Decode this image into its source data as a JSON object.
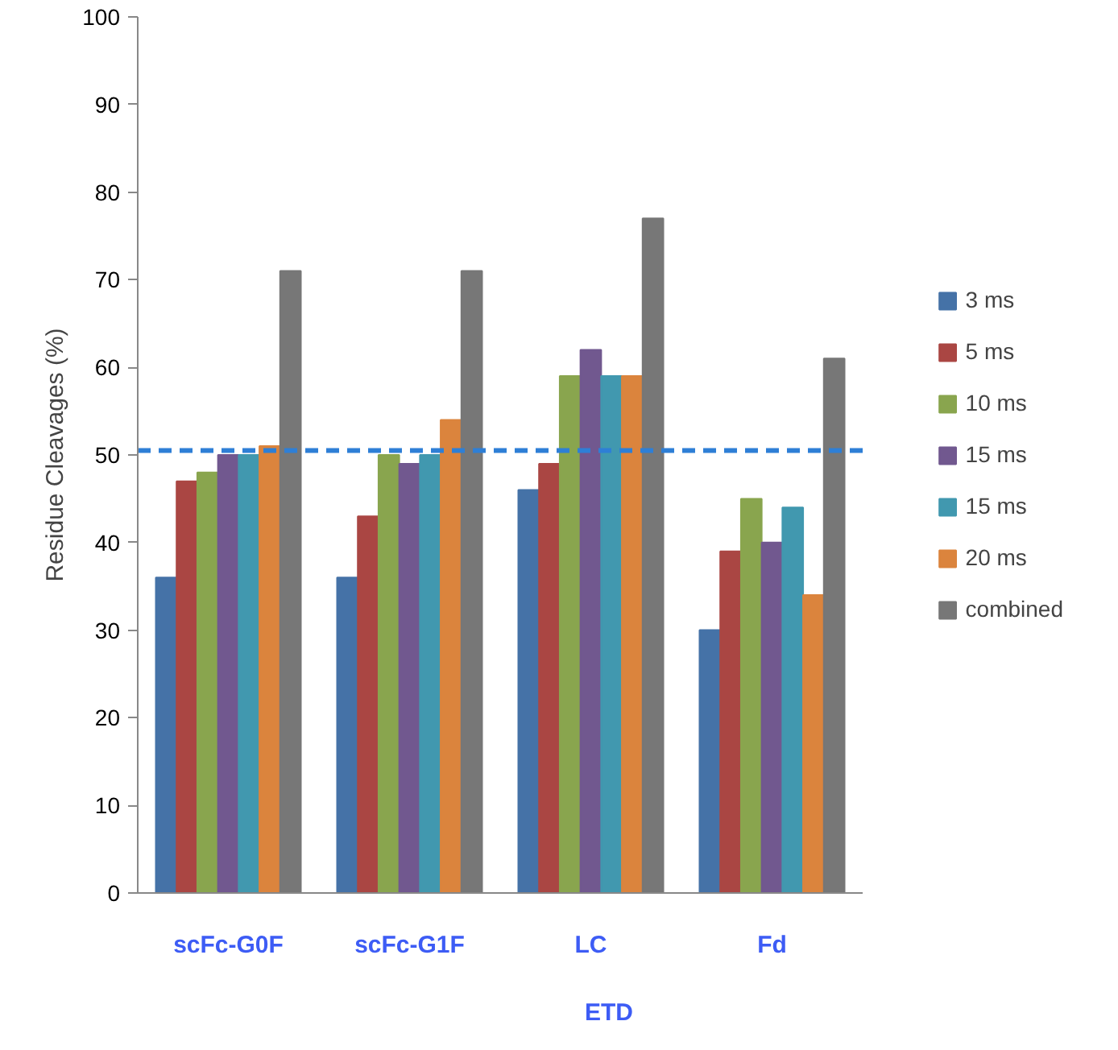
{
  "chart_data": {
    "type": "bar",
    "ylabel": "Residue Cleavages (%)",
    "xlabel": "ETD",
    "categories": [
      "scFc-G0F",
      "scFc-G1F",
      "LC",
      "Fd"
    ],
    "ylim": [
      0,
      100
    ],
    "yticks": [
      0,
      10,
      20,
      30,
      40,
      50,
      60,
      70,
      80,
      90,
      100
    ],
    "grid": false,
    "legend": "right",
    "ref_lines": [
      {
        "axis": "y",
        "value": 50.5,
        "color": "#2e7fd6",
        "line_style": "dashed"
      }
    ],
    "series": [
      {
        "name": "3 ms",
        "color": "#4572a7",
        "values": [
          36,
          36,
          46,
          30
        ]
      },
      {
        "name": "5 ms",
        "color": "#aa4643",
        "values": [
          47,
          43,
          49,
          39
        ]
      },
      {
        "name": "10 ms",
        "color": "#89a54e",
        "values": [
          48,
          50,
          59,
          45
        ]
      },
      {
        "name": "15 ms",
        "color": "#71588f",
        "values": [
          50,
          49,
          62,
          40
        ]
      },
      {
        "name": "15 ms",
        "color": "#4198af",
        "values": [
          50,
          50,
          59,
          44
        ]
      },
      {
        "name": "20 ms",
        "color": "#db843d",
        "values": [
          51,
          54,
          59,
          34
        ]
      },
      {
        "name": "combined",
        "color": "#777777",
        "values": [
          71,
          71,
          77,
          61
        ]
      }
    ]
  }
}
